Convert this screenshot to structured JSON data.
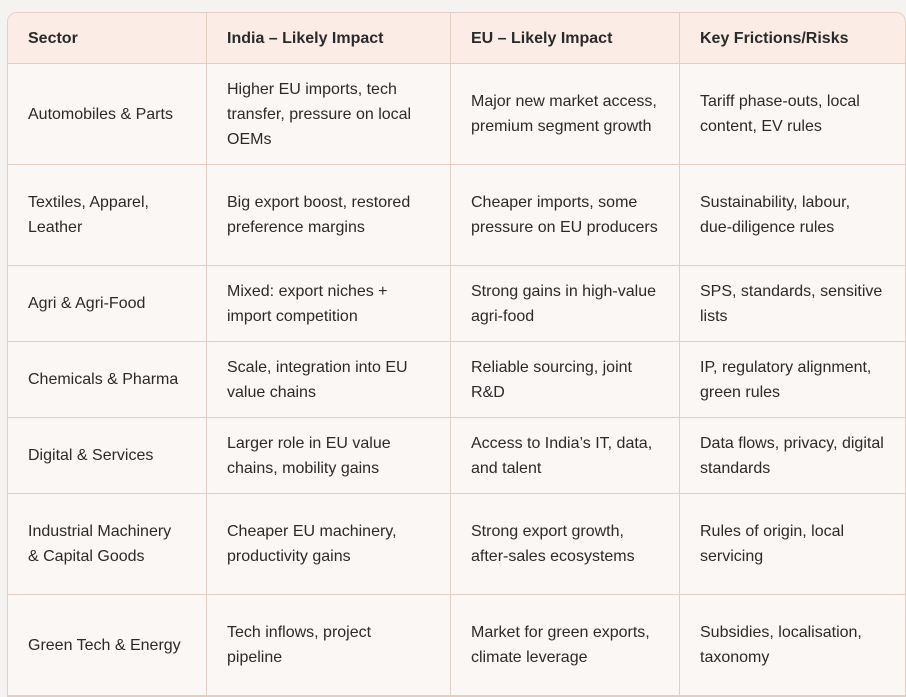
{
  "headers": [
    "Sector",
    "India – Likely Impact",
    "EU – Likely Impact",
    "Key Frictions/Risks"
  ],
  "rows": [
    [
      "Automobiles & Parts",
      "Higher EU imports, tech transfer, pressure on local OEMs",
      "Major new market access, premium segment growth",
      "Tariff phase-outs, local content, EV rules"
    ],
    [
      "Textiles, Apparel, Leather",
      "Big export boost, restored preference margins",
      "Cheaper imports, some pressure on EU producers",
      "Sustainability, labour, due-diligence rules"
    ],
    [
      "Agri & Agri-Food",
      "Mixed: export niches + import competition",
      "Strong gains in high-value agri-food",
      "SPS, standards, sensitive lists"
    ],
    [
      "Chemicals & Pharma",
      "Scale, integration into EU value chains",
      "Reliable sourcing, joint R&D",
      "IP, regulatory alignment, green rules"
    ],
    [
      "Digital & Services",
      "Larger role in EU value chains, mobility gains",
      "Access to India’s IT, data, and talent",
      "Data flows, privacy, digital standards"
    ],
    [
      "Industrial Machinery & Capital Goods",
      "Cheaper EU machinery, productivity gains",
      "Strong export growth, after-sales ecosystems",
      "Rules of origin, local servicing"
    ],
    [
      "Green Tech & Energy",
      "Tech inflows, project pipeline",
      "Market for green exports, climate leverage",
      "Subsidies, localisation, taxonomy"
    ]
  ]
}
